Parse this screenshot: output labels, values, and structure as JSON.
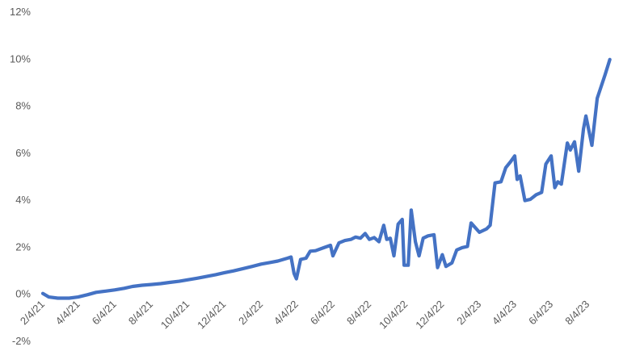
{
  "chart_data": {
    "type": "line",
    "title": "",
    "xlabel": "",
    "ylabel": "",
    "ylim": [
      -2,
      12
    ],
    "xlim": [
      "2021-02-04",
      "2023-09-28"
    ],
    "grid": false,
    "legend": "none",
    "y_ticks": [
      "-2%",
      "0%",
      "2%",
      "4%",
      "6%",
      "8%",
      "10%",
      "12%"
    ],
    "y_tick_values": [
      -2,
      0,
      2,
      4,
      6,
      8,
      10,
      12
    ],
    "x_ticks": [
      "2/4/21",
      "4/4/21",
      "6/4/21",
      "8/4/21",
      "10/4/21",
      "12/4/21",
      "2/4/22",
      "4/4/22",
      "6/4/22",
      "8/4/22",
      "10/4/22",
      "12/4/22",
      "2/4/23",
      "4/4/23",
      "6/4/23",
      "8/4/23"
    ],
    "x_tick_dates": [
      "2021-02-04",
      "2021-04-04",
      "2021-06-04",
      "2021-08-04",
      "2021-10-04",
      "2021-12-04",
      "2022-02-04",
      "2022-04-04",
      "2022-06-04",
      "2022-08-04",
      "2022-10-04",
      "2022-12-04",
      "2023-02-04",
      "2023-04-04",
      "2023-06-04",
      "2023-08-04"
    ],
    "line_color": "#4472C4",
    "series": [
      {
        "points": [
          [
            "2021-02-04",
            0.0
          ],
          [
            "2021-02-14",
            -0.15
          ],
          [
            "2021-03-01",
            -0.2
          ],
          [
            "2021-03-20",
            -0.2
          ],
          [
            "2021-04-04",
            -0.15
          ],
          [
            "2021-04-20",
            -0.05
          ],
          [
            "2021-05-04",
            0.05
          ],
          [
            "2021-05-20",
            0.1
          ],
          [
            "2021-06-04",
            0.15
          ],
          [
            "2021-06-20",
            0.22
          ],
          [
            "2021-07-04",
            0.3
          ],
          [
            "2021-07-20",
            0.35
          ],
          [
            "2021-08-04",
            0.38
          ],
          [
            "2021-08-20",
            0.42
          ],
          [
            "2021-09-04",
            0.47
          ],
          [
            "2021-09-20",
            0.52
          ],
          [
            "2021-10-04",
            0.58
          ],
          [
            "2021-10-20",
            0.65
          ],
          [
            "2021-11-04",
            0.72
          ],
          [
            "2021-11-20",
            0.8
          ],
          [
            "2021-12-04",
            0.88
          ],
          [
            "2021-12-20",
            0.96
          ],
          [
            "2022-01-04",
            1.05
          ],
          [
            "2022-01-20",
            1.15
          ],
          [
            "2022-02-04",
            1.25
          ],
          [
            "2022-02-20",
            1.32
          ],
          [
            "2022-03-04",
            1.38
          ],
          [
            "2022-03-20",
            1.5
          ],
          [
            "2022-03-26",
            1.55
          ],
          [
            "2022-03-31",
            0.85
          ],
          [
            "2022-04-04",
            0.62
          ],
          [
            "2022-04-11",
            1.45
          ],
          [
            "2022-04-20",
            1.5
          ],
          [
            "2022-04-27",
            1.8
          ],
          [
            "2022-05-06",
            1.82
          ],
          [
            "2022-05-20",
            1.95
          ],
          [
            "2022-05-31",
            2.05
          ],
          [
            "2022-06-04",
            1.6
          ],
          [
            "2022-06-14",
            2.15
          ],
          [
            "2022-06-24",
            2.25
          ],
          [
            "2022-07-04",
            2.3
          ],
          [
            "2022-07-12",
            2.4
          ],
          [
            "2022-07-20",
            2.35
          ],
          [
            "2022-07-28",
            2.55
          ],
          [
            "2022-08-04",
            2.3
          ],
          [
            "2022-08-12",
            2.38
          ],
          [
            "2022-08-20",
            2.2
          ],
          [
            "2022-08-28",
            2.9
          ],
          [
            "2022-09-02",
            2.3
          ],
          [
            "2022-09-08",
            2.35
          ],
          [
            "2022-09-14",
            1.6
          ],
          [
            "2022-09-21",
            2.95
          ],
          [
            "2022-09-28",
            3.15
          ],
          [
            "2022-10-01",
            1.2
          ],
          [
            "2022-10-08",
            1.2
          ],
          [
            "2022-10-13",
            3.55
          ],
          [
            "2022-10-20",
            2.2
          ],
          [
            "2022-10-26",
            1.6
          ],
          [
            "2022-11-02",
            2.35
          ],
          [
            "2022-11-10",
            2.45
          ],
          [
            "2022-11-20",
            2.5
          ],
          [
            "2022-11-26",
            1.1
          ],
          [
            "2022-12-04",
            1.65
          ],
          [
            "2022-12-10",
            1.15
          ],
          [
            "2022-12-20",
            1.3
          ],
          [
            "2022-12-28",
            1.85
          ],
          [
            "2023-01-06",
            1.95
          ],
          [
            "2023-01-15",
            2.0
          ],
          [
            "2023-01-21",
            3.0
          ],
          [
            "2023-02-04",
            2.6
          ],
          [
            "2023-02-16",
            2.75
          ],
          [
            "2023-02-22",
            2.9
          ],
          [
            "2023-03-02",
            4.7
          ],
          [
            "2023-03-12",
            4.75
          ],
          [
            "2023-03-20",
            5.35
          ],
          [
            "2023-03-28",
            5.6
          ],
          [
            "2023-04-04",
            5.85
          ],
          [
            "2023-04-08",
            4.85
          ],
          [
            "2023-04-13",
            5.0
          ],
          [
            "2023-04-21",
            3.95
          ],
          [
            "2023-04-30",
            4.0
          ],
          [
            "2023-05-10",
            4.2
          ],
          [
            "2023-05-19",
            4.3
          ],
          [
            "2023-05-26",
            5.5
          ],
          [
            "2023-06-04",
            5.85
          ],
          [
            "2023-06-10",
            4.5
          ],
          [
            "2023-06-15",
            4.75
          ],
          [
            "2023-06-21",
            4.65
          ],
          [
            "2023-07-01",
            6.4
          ],
          [
            "2023-07-06",
            6.1
          ],
          [
            "2023-07-13",
            6.45
          ],
          [
            "2023-07-20",
            5.2
          ],
          [
            "2023-07-28",
            7.0
          ],
          [
            "2023-08-01",
            7.55
          ],
          [
            "2023-08-11",
            6.3
          ],
          [
            "2023-08-20",
            8.3
          ],
          [
            "2023-09-02",
            9.3
          ],
          [
            "2023-09-10",
            9.95
          ]
        ]
      }
    ]
  }
}
